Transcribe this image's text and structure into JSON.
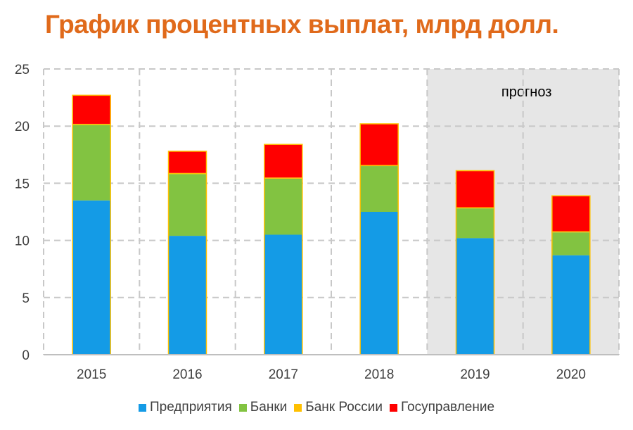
{
  "chart_data": {
    "type": "bar",
    "stacked": true,
    "title": "График процентных выплат, млрд долл.",
    "xlabel": "",
    "ylabel": "",
    "categories": [
      "2015",
      "2016",
      "2017",
      "2018",
      "2019",
      "2020"
    ],
    "ylim": [
      0,
      25
    ],
    "yticks": [
      0,
      5,
      10,
      15,
      20,
      25
    ],
    "grid": true,
    "legend_position": "bottom",
    "series": [
      {
        "name": "Предприятия",
        "color": "#149be6",
        "values": [
          13.5,
          10.4,
          10.5,
          12.5,
          10.2,
          8.7
        ]
      },
      {
        "name": "Банки",
        "color": "#82c341",
        "values": [
          6.6,
          5.4,
          4.9,
          4.0,
          2.6,
          2.0
        ]
      },
      {
        "name": "Банк России",
        "color": "#ffc000",
        "values": [
          0.1,
          0.1,
          0.1,
          0.1,
          0.1,
          0.1
        ]
      },
      {
        "name": "Госуправление",
        "color": "#ff0000",
        "values": [
          2.5,
          1.9,
          2.9,
          3.6,
          3.2,
          3.1
        ]
      }
    ],
    "forecast": {
      "label": "прогноз",
      "categories": [
        "2019",
        "2020"
      ],
      "color": "#e6e6e6"
    }
  }
}
